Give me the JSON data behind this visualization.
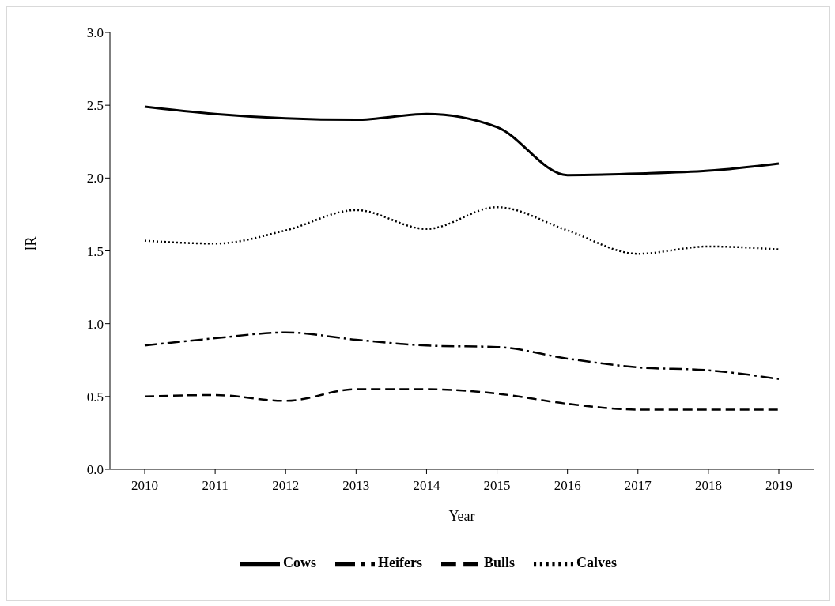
{
  "chart_data": {
    "type": "line",
    "xlabel": "Year",
    "ylabel": "IR",
    "categories": [
      "2010",
      "2011",
      "2012",
      "2013",
      "2014",
      "2015",
      "2016",
      "2017",
      "2018",
      "2019"
    ],
    "series": [
      {
        "name": "Cows",
        "color": "#000000",
        "line_style": "solid",
        "values": [
          2.49,
          2.44,
          2.41,
          2.4,
          2.44,
          2.35,
          2.02,
          2.03,
          2.05,
          2.1
        ]
      },
      {
        "name": "Heifers",
        "color": "#000000",
        "line_style": "dashdot",
        "values": [
          0.85,
          0.9,
          0.94,
          0.89,
          0.85,
          0.84,
          0.76,
          0.7,
          0.68,
          0.62
        ]
      },
      {
        "name": "Bulls",
        "color": "#000000",
        "line_style": "dashed",
        "values": [
          0.5,
          0.51,
          0.47,
          0.55,
          0.55,
          0.52,
          0.45,
          0.41,
          0.41,
          0.41
        ]
      },
      {
        "name": "Calves",
        "color": "#000000",
        "line_style": "dotted",
        "values": [
          1.57,
          1.55,
          1.64,
          1.78,
          1.65,
          1.8,
          1.64,
          1.48,
          1.53,
          1.51
        ]
      }
    ],
    "ylim": [
      0,
      3
    ],
    "yticks": [
      {
        "value": 0,
        "label": "0.0"
      },
      0.5,
      {
        "value": 1,
        "label": "1.0"
      },
      1.5,
      {
        "value": 2,
        "label": "2.0"
      },
      2.5,
      {
        "value": 3,
        "label": "3.0"
      }
    ],
    "grid": false,
    "legend": "bottom",
    "marker": "none"
  }
}
